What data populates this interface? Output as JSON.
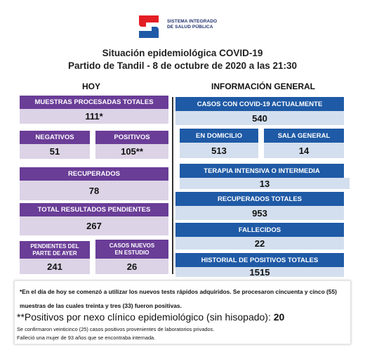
{
  "logo": {
    "line1": "SISTEMA INTEGRADO",
    "line2": "DE SALUD PÚBLICA",
    "colors": [
      "#e31e24",
      "#1f5aa6"
    ]
  },
  "title": {
    "line1": "Situación epidemiológica COVID-19",
    "line2": "Partido de Tandil - 8 de octubre de 2020 a las 21:30"
  },
  "hoy": {
    "heading": "HOY",
    "muestras": {
      "label": "MUESTRAS PROCESADAS TOTALES",
      "value": "111*"
    },
    "negativos": {
      "label": "NEGATIVOS",
      "value": "51"
    },
    "positivos": {
      "label": "POSITIVOS",
      "value": "105**"
    },
    "recuperados": {
      "label": "RECUPERADOS",
      "value": "78"
    },
    "pendientes_total": {
      "label": "TOTAL RESULTADOS PENDIENTES",
      "value": "267"
    },
    "pendientes_ayer": {
      "label_1": "PENDIENTES DEL",
      "label_2": "PARTE DE  AYER",
      "value": "241"
    },
    "casos_nuevos": {
      "label_1": "CASOS NUEVOS",
      "label_2": "EN ESTUDIO",
      "value": "26"
    }
  },
  "general": {
    "heading": "INFORMACIÓN GENERAL",
    "casos_actuales": {
      "label": "CASOS CON COVID-19 ACTUALMENTE",
      "value": "540"
    },
    "domicilio": {
      "label": "EN DOMICILIO",
      "value": "513"
    },
    "sala_general": {
      "label": "SALA GENERAL",
      "value": "14"
    },
    "terapia": {
      "label": "TERAPIA INTENSIVA O INTERMEDIA",
      "value": "13"
    },
    "recuperados_totales": {
      "label": "RECUPERADOS TOTALES",
      "value": "953"
    },
    "fallecidos": {
      "label": "FALLECIDOS",
      "value": "22"
    },
    "historial": {
      "label": "HISTORIAL DE POSITIVOS TOTALES",
      "value": "1515"
    }
  },
  "footnotes": {
    "note1": "*En el día de hoy se comenzó a utilizar los nuevos tests rápidos adquiridos. Se procesaron cincuenta y cinco (55) muestras de las cuales treinta y tres (33) fueron positivas.",
    "nexo_label": "**Positivos por nexo clínico epidemiológico (sin hisopado):",
    "nexo_value": "20",
    "note2": "Se confirmaron veinticinco (25) casos positivos provenientes de laboratorios privados.",
    "note3": "Falleció una mujer de 93 años que se encontraba internada."
  }
}
